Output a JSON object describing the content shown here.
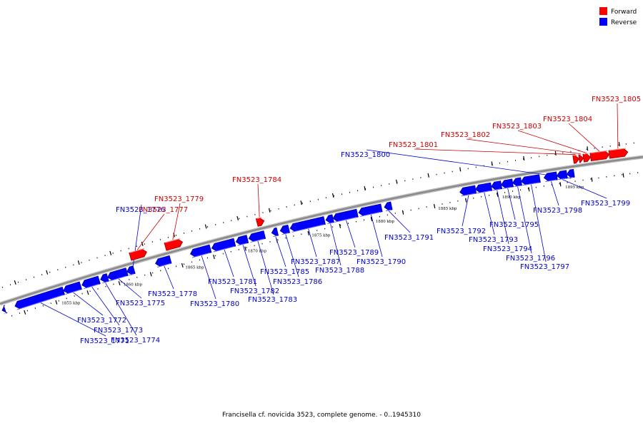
{
  "legend": {
    "forward_label": "Forward",
    "reverse_label": "Reverse",
    "forward_color": "#ff0000",
    "reverse_color": "#0000ff"
  },
  "colors": {
    "forward_label_text": "#cc0000",
    "reverse_label_text": "#0000cc",
    "backbone": "#888888"
  },
  "footer": "Francisella cf. novicida 3523, complete genome. - 0..1945310",
  "ticks": [
    {
      "label": "1855 kbp"
    },
    {
      "label": "1860 kbp"
    },
    {
      "label": "1865 kbp"
    },
    {
      "label": "1870 kbp"
    },
    {
      "label": "1875 kbp"
    },
    {
      "label": "1880 kbp"
    },
    {
      "label": "1885 kbp"
    },
    {
      "label": "1890 kbp"
    },
    {
      "label": "1895 kbp"
    }
  ],
  "genes": [
    {
      "name": "FN3523_1771",
      "strand": "reverse"
    },
    {
      "name": "FN3523_1772",
      "strand": "reverse"
    },
    {
      "name": "FN3523_1773",
      "strand": "reverse"
    },
    {
      "name": "FN3523_1774",
      "strand": "reverse"
    },
    {
      "name": "FN3523_1775",
      "strand": "reverse"
    },
    {
      "name": "FN3523_1776",
      "strand": "reverse"
    },
    {
      "name": "FN3523_1777",
      "strand": "forward"
    },
    {
      "name": "FN3523_1778",
      "strand": "reverse"
    },
    {
      "name": "FN3523_1779",
      "strand": "forward"
    },
    {
      "name": "FN3523_1780",
      "strand": "reverse"
    },
    {
      "name": "FN3523_1781",
      "strand": "reverse"
    },
    {
      "name": "FN3523_1782",
      "strand": "reverse"
    },
    {
      "name": "FN3523_1783",
      "strand": "reverse"
    },
    {
      "name": "FN3523_1784",
      "strand": "forward"
    },
    {
      "name": "FN3523_1785",
      "strand": "reverse"
    },
    {
      "name": "FN3523_1786",
      "strand": "reverse"
    },
    {
      "name": "FN3523_1787",
      "strand": "reverse"
    },
    {
      "name": "FN3523_1788",
      "strand": "reverse"
    },
    {
      "name": "FN3523_1789",
      "strand": "reverse"
    },
    {
      "name": "FN3523_1790",
      "strand": "reverse"
    },
    {
      "name": "FN3523_1791",
      "strand": "reverse"
    },
    {
      "name": "FN3523_1792",
      "strand": "reverse"
    },
    {
      "name": "FN3523_1793",
      "strand": "reverse"
    },
    {
      "name": "FN3523_1794",
      "strand": "reverse"
    },
    {
      "name": "FN3523_1795",
      "strand": "reverse"
    },
    {
      "name": "FN3523_1796",
      "strand": "reverse"
    },
    {
      "name": "FN3523_1797",
      "strand": "reverse"
    },
    {
      "name": "FN3523_1798",
      "strand": "reverse"
    },
    {
      "name": "FN3523_1799",
      "strand": "reverse"
    },
    {
      "name": "FN3523_1800",
      "strand": "reverse"
    },
    {
      "name": "FN3523_1801",
      "strand": "forward"
    },
    {
      "name": "FN3523_1802",
      "strand": "forward"
    },
    {
      "name": "FN3523_1803",
      "strand": "forward"
    },
    {
      "name": "FN3523_1804",
      "strand": "forward"
    },
    {
      "name": "FN3523_1805",
      "strand": "forward"
    }
  ]
}
